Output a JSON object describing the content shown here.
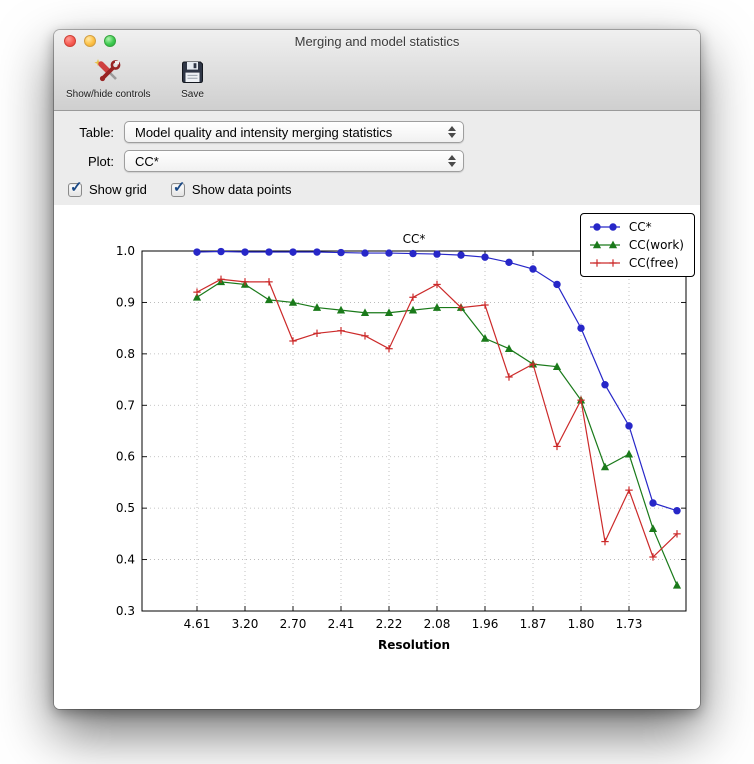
{
  "window": {
    "title": "Merging and model statistics"
  },
  "toolbar": {
    "items": [
      {
        "label": "Show/hide controls",
        "icon": "tools-icon"
      },
      {
        "label": "Save",
        "icon": "save-icon"
      }
    ]
  },
  "controls": {
    "table": {
      "label": "Table:",
      "value": "Model quality and intensity merging statistics"
    },
    "plot": {
      "label": "Plot:",
      "value": "CC*"
    },
    "checkboxes": [
      {
        "label": "Show grid",
        "checked": true
      },
      {
        "label": "Show data points",
        "checked": true
      }
    ]
  },
  "chart_data": {
    "type": "line",
    "title": "CC*",
    "xlabel": "Resolution",
    "ylabel": "",
    "ylim": [
      0.3,
      1.0
    ],
    "grid": true,
    "show_data_points": true,
    "legend_position": "upper right",
    "y_ticks": [
      0.3,
      0.4,
      0.5,
      0.6,
      0.7,
      0.8,
      0.9,
      1.0
    ],
    "x_tick_labels": [
      "4.61",
      "3.20",
      "2.70",
      "2.41",
      "2.22",
      "2.08",
      "1.96",
      "1.87",
      "1.80",
      "1.73"
    ],
    "x_ticks_every_nth_point": 2,
    "series": [
      {
        "name": "CC*",
        "color": "#2727c8",
        "marker": "circle",
        "values": [
          0.998,
          0.999,
          0.998,
          0.998,
          0.998,
          0.998,
          0.997,
          0.996,
          0.996,
          0.995,
          0.994,
          0.992,
          0.988,
          0.978,
          0.965,
          0.935,
          0.85,
          0.74,
          0.66,
          0.51,
          0.495
        ]
      },
      {
        "name": "CC(work)",
        "color": "#1a7a1a",
        "marker": "triangle",
        "values": [
          0.91,
          0.94,
          0.935,
          0.905,
          0.9,
          0.89,
          0.885,
          0.88,
          0.88,
          0.885,
          0.89,
          0.89,
          0.83,
          0.81,
          0.78,
          0.775,
          0.71,
          0.58,
          0.605,
          0.46,
          0.35
        ]
      },
      {
        "name": "CC(free)",
        "color": "#cc2a2a",
        "marker": "plus",
        "values": [
          0.92,
          0.945,
          0.94,
          0.94,
          0.825,
          0.84,
          0.845,
          0.835,
          0.81,
          0.91,
          0.935,
          0.89,
          0.895,
          0.755,
          0.78,
          0.62,
          0.71,
          0.435,
          0.535,
          0.405,
          0.45
        ]
      }
    ]
  }
}
